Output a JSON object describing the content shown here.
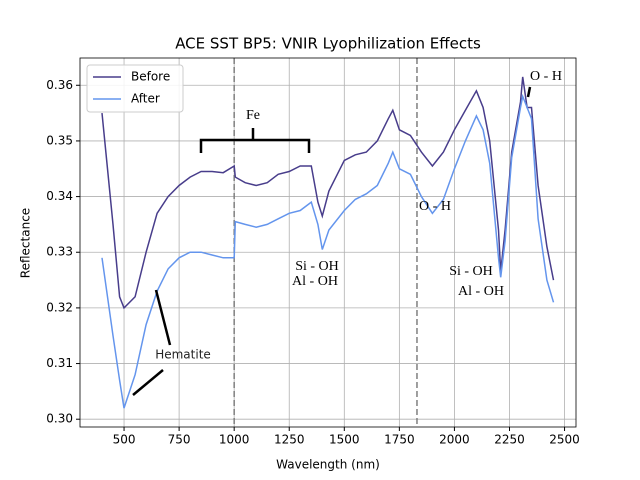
{
  "chart_data": {
    "type": "line",
    "title": "ACE SST BP5: VNIR Lyophilization Effects",
    "xlabel": "Wavelength (nm)",
    "ylabel": "Reflectance",
    "x": [
      400,
      450,
      480,
      500,
      550,
      600,
      650,
      700,
      750,
      800,
      850,
      900,
      950,
      1000,
      1005,
      1050,
      1100,
      1150,
      1200,
      1250,
      1300,
      1350,
      1380,
      1400,
      1430,
      1500,
      1550,
      1600,
      1650,
      1700,
      1720,
      1750,
      1800,
      1850,
      1900,
      1950,
      2000,
      2050,
      2100,
      2130,
      2160,
      2200,
      2210,
      2230,
      2260,
      2300,
      2310,
      2330,
      2350,
      2380,
      2420,
      2450
    ],
    "series": [
      {
        "name": "Before",
        "color": "#483d8b",
        "values": [
          0.355,
          0.335,
          0.322,
          0.32,
          0.322,
          0.33,
          0.337,
          0.34,
          0.342,
          0.3435,
          0.3445,
          0.3445,
          0.3443,
          0.3455,
          0.3435,
          0.3425,
          0.342,
          0.3425,
          0.344,
          0.3445,
          0.3455,
          0.3455,
          0.339,
          0.3365,
          0.341,
          0.3465,
          0.3475,
          0.348,
          0.35,
          0.354,
          0.3555,
          0.352,
          0.351,
          0.348,
          0.3455,
          0.348,
          0.352,
          0.3555,
          0.359,
          0.356,
          0.35,
          0.334,
          0.3265,
          0.334,
          0.348,
          0.357,
          0.3615,
          0.356,
          0.356,
          0.342,
          0.331,
          0.325
        ]
      },
      {
        "name": "After",
        "color": "#6495ed",
        "values": [
          0.329,
          0.315,
          0.307,
          0.302,
          0.308,
          0.317,
          0.323,
          0.327,
          0.329,
          0.33,
          0.33,
          0.3295,
          0.329,
          0.329,
          0.3355,
          0.335,
          0.3345,
          0.335,
          0.336,
          0.337,
          0.3375,
          0.339,
          0.335,
          0.3305,
          0.334,
          0.3375,
          0.3395,
          0.3405,
          0.342,
          0.346,
          0.348,
          0.345,
          0.344,
          0.34,
          0.337,
          0.3395,
          0.345,
          0.35,
          0.3545,
          0.352,
          0.346,
          0.329,
          0.3255,
          0.332,
          0.347,
          0.356,
          0.358,
          0.356,
          0.354,
          0.336,
          0.325,
          0.321
        ]
      }
    ],
    "xlim": [
      300,
      2552
    ],
    "ylim": [
      0.2986,
      0.3649
    ],
    "xticks": [
      500,
      750,
      1000,
      1250,
      1500,
      1750,
      2000,
      2250,
      2500
    ],
    "yticks": [
      {
        "value": 0.3,
        "label": "0.30"
      },
      0.31,
      0.32,
      0.33,
      0.34,
      0.35,
      0.36
    ],
    "grid": true,
    "legend": "upper left",
    "vlines": [
      1000,
      1830
    ],
    "annotations": [
      "Fe",
      "Si - OH",
      "Al - OH",
      "O - H",
      "Si - OH",
      "Al - OH",
      "O - H",
      "Hematite"
    ]
  }
}
